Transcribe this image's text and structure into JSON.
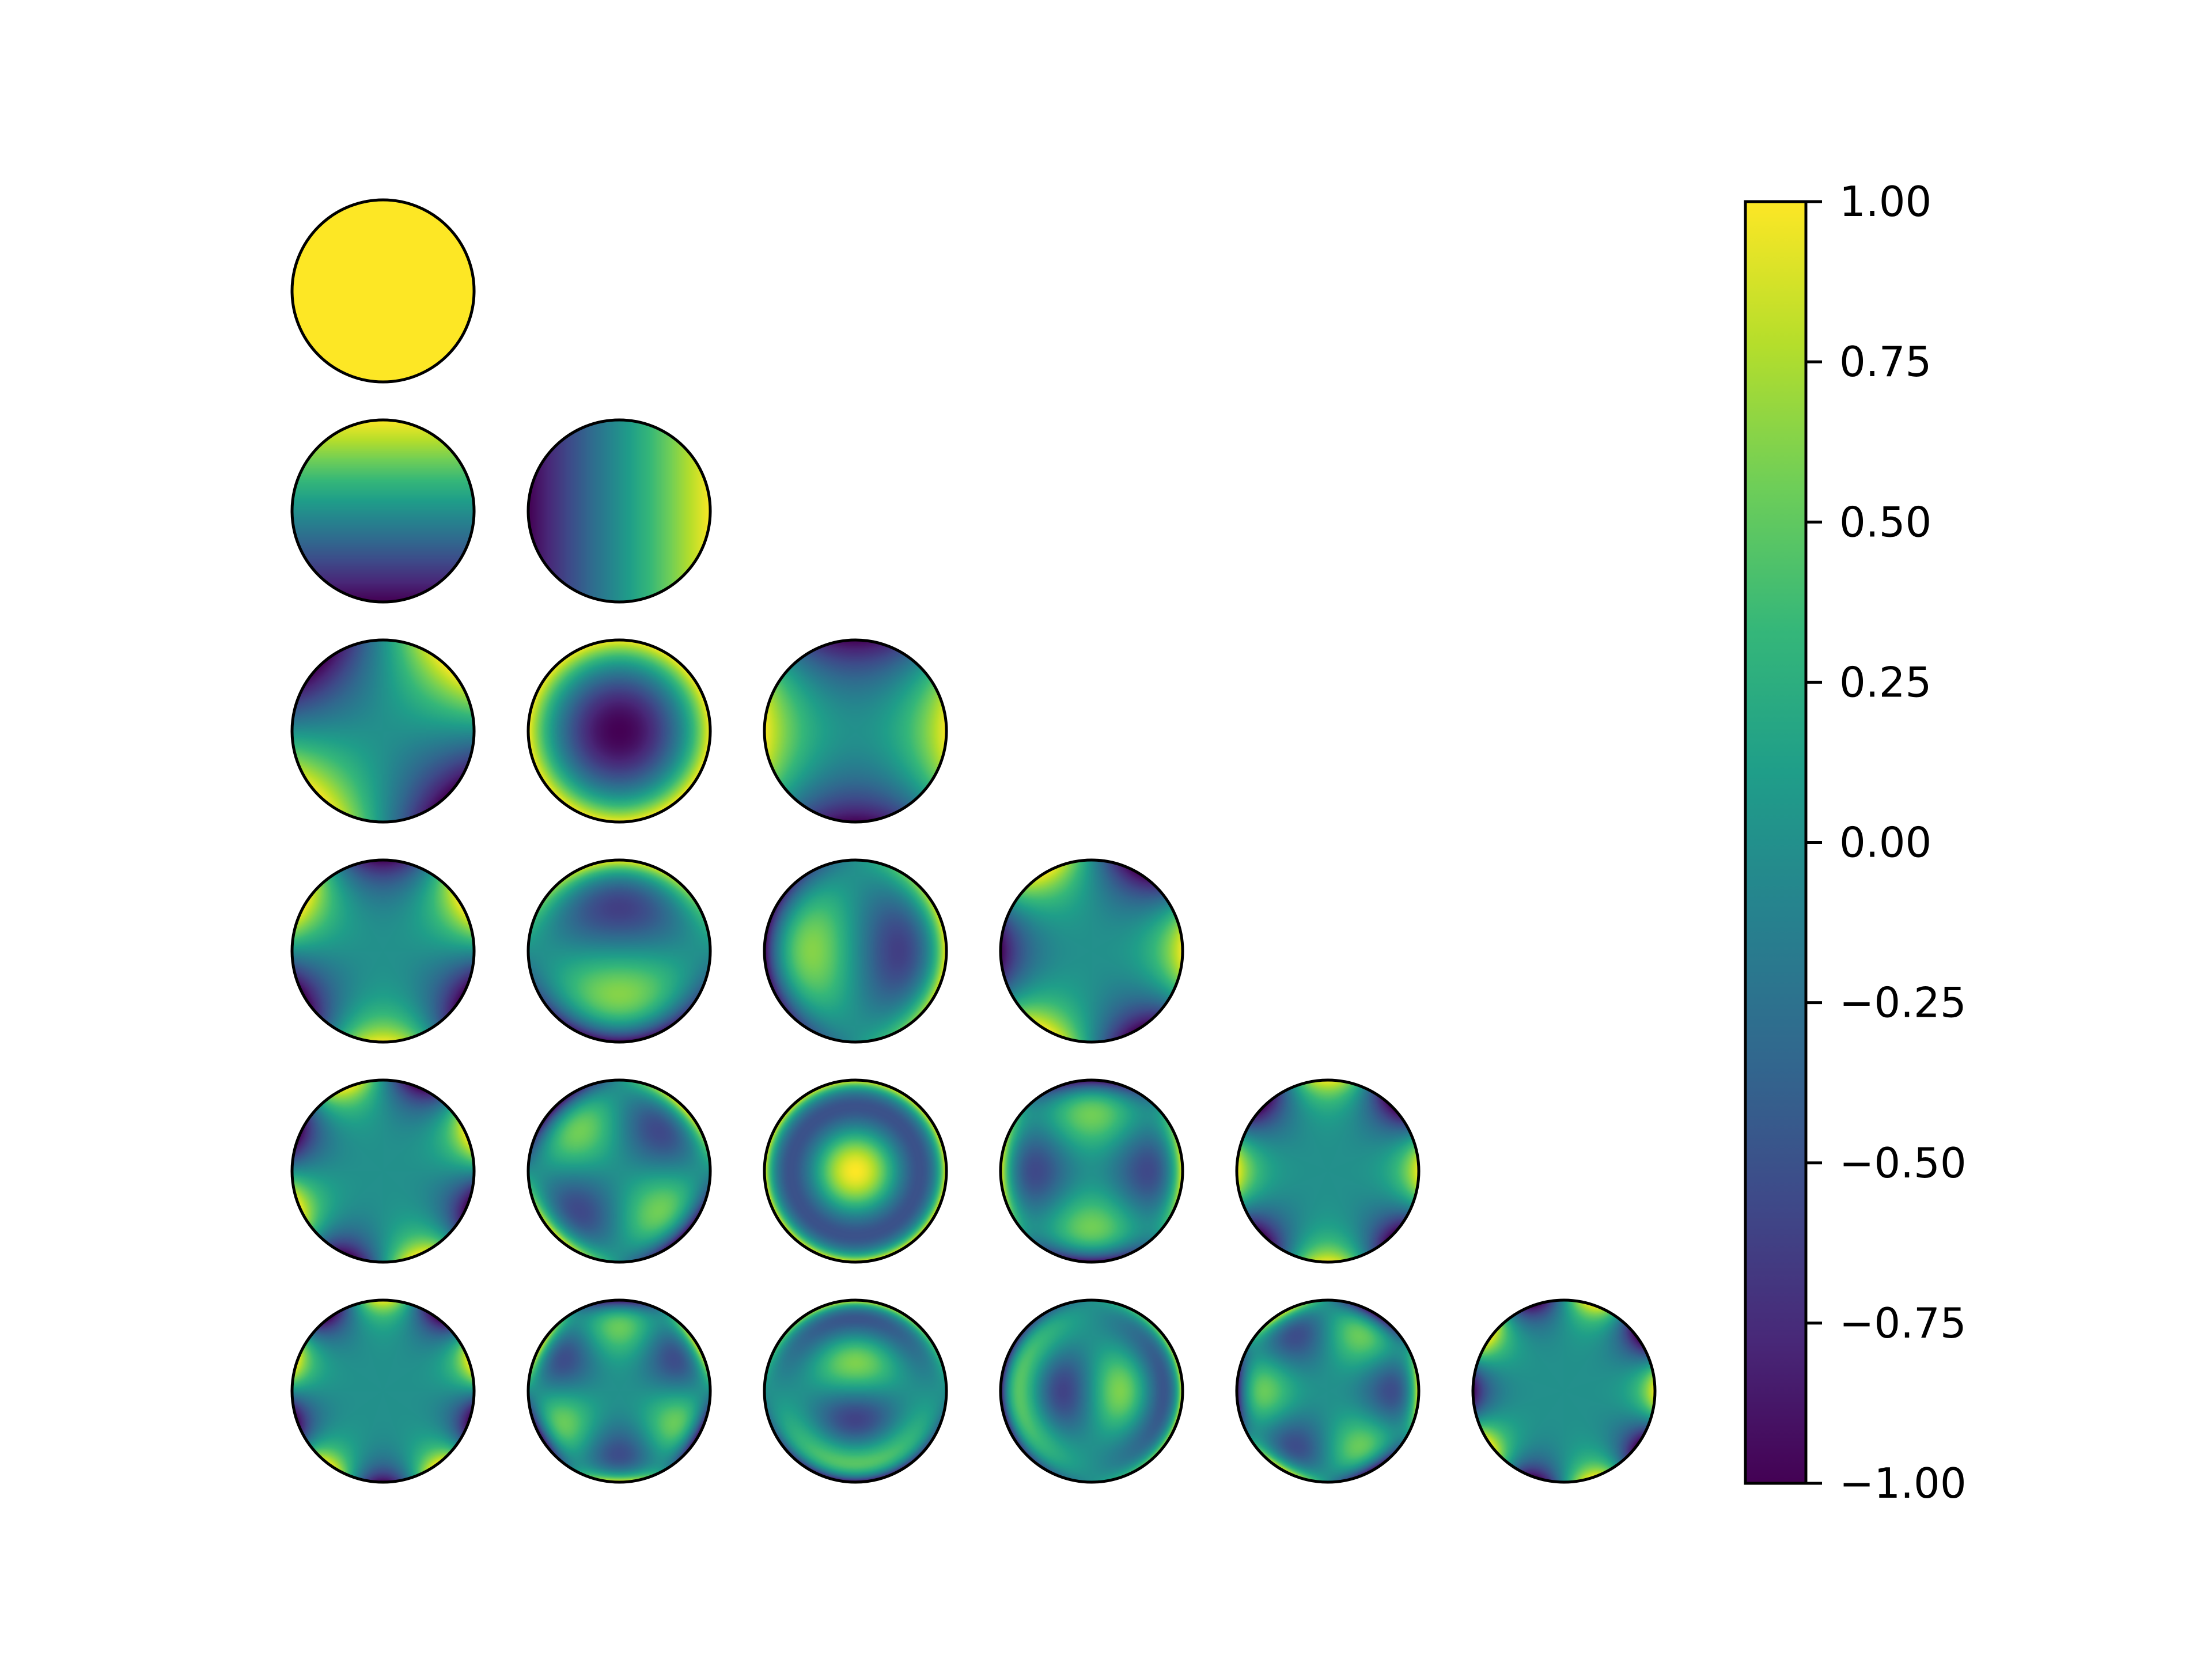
{
  "chart_data": {
    "type": "heatmap",
    "title": "",
    "xlabel": "",
    "ylabel": "",
    "colormap": "viridis",
    "layout": "triangular zernike pyramid",
    "rows": 6,
    "grid": false,
    "background": "#ffffff",
    "disc_outline_color": "#000000",
    "colorbar": {
      "position": "right",
      "vmin": -1.0,
      "vmax": 1.0,
      "ticks": [
        1.0,
        0.75,
        0.5,
        0.25,
        0.0,
        -0.25,
        -0.5,
        -0.75,
        -1.0
      ],
      "tick_labels": [
        "1.00",
        "0.75",
        "0.50",
        "0.25",
        "0.00",
        "−0.25",
        "−0.50",
        "−0.75",
        "−1.00"
      ]
    },
    "panels": [
      {
        "row": 1,
        "col": 1,
        "n": 0,
        "m": 0
      },
      {
        "row": 2,
        "col": 1,
        "n": 1,
        "m": -1
      },
      {
        "row": 2,
        "col": 2,
        "n": 1,
        "m": 1
      },
      {
        "row": 3,
        "col": 1,
        "n": 2,
        "m": -2
      },
      {
        "row": 3,
        "col": 2,
        "n": 2,
        "m": 0
      },
      {
        "row": 3,
        "col": 3,
        "n": 2,
        "m": 2
      },
      {
        "row": 4,
        "col": 1,
        "n": 3,
        "m": -3
      },
      {
        "row": 4,
        "col": 2,
        "n": 3,
        "m": -1
      },
      {
        "row": 4,
        "col": 3,
        "n": 3,
        "m": 1
      },
      {
        "row": 4,
        "col": 4,
        "n": 3,
        "m": 3
      },
      {
        "row": 5,
        "col": 1,
        "n": 4,
        "m": -4
      },
      {
        "row": 5,
        "col": 2,
        "n": 4,
        "m": -2
      },
      {
        "row": 5,
        "col": 3,
        "n": 4,
        "m": 0
      },
      {
        "row": 5,
        "col": 4,
        "n": 4,
        "m": 2
      },
      {
        "row": 5,
        "col": 5,
        "n": 4,
        "m": 4
      },
      {
        "row": 6,
        "col": 1,
        "n": 5,
        "m": -5
      },
      {
        "row": 6,
        "col": 2,
        "n": 5,
        "m": -3
      },
      {
        "row": 6,
        "col": 3,
        "n": 5,
        "m": -1
      },
      {
        "row": 6,
        "col": 4,
        "n": 5,
        "m": 1
      },
      {
        "row": 6,
        "col": 5,
        "n": 5,
        "m": 3
      },
      {
        "row": 6,
        "col": 6,
        "n": 5,
        "m": 5
      }
    ]
  }
}
